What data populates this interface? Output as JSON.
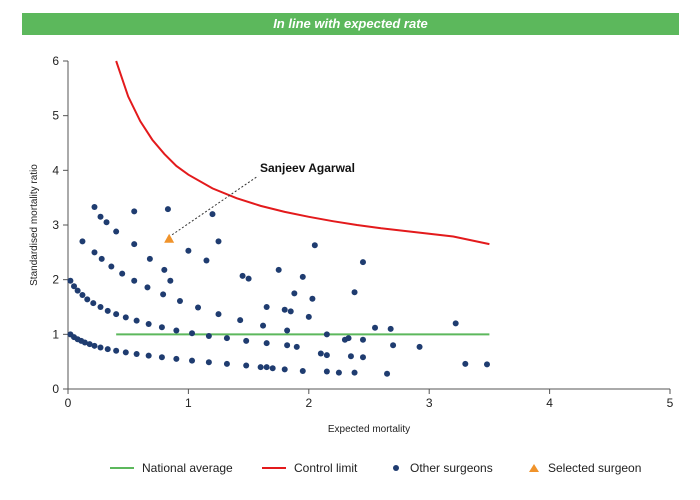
{
  "banner": {
    "text": "In line with expected rate",
    "color": "#5cb85c"
  },
  "chart_data": {
    "type": "scatter",
    "title": "In line with expected rate",
    "xlabel": "Expected mortality",
    "ylabel": "Standardised mortality ratio",
    "xlim": [
      0,
      5
    ],
    "ylim": [
      0,
      6
    ],
    "xticks": [
      "0",
      "1",
      "2",
      "3",
      "4",
      "5"
    ],
    "yticks": [
      "0",
      "1",
      "2",
      "3",
      "4",
      "5",
      "6"
    ],
    "grid": false,
    "legend_position": "bottom",
    "colors": {
      "national": "#5cb85c",
      "control": "#e31a1c",
      "other": "#1f3c70",
      "selected": "#f0932b"
    },
    "national_average": {
      "name": "National average",
      "x": [
        0.4,
        3.5
      ],
      "y": [
        1,
        1
      ]
    },
    "control_limit": {
      "name": "Control limit",
      "x": [
        0.4,
        0.5,
        0.6,
        0.7,
        0.8,
        0.9,
        1.0,
        1.2,
        1.4,
        1.6,
        1.8,
        2.0,
        2.2,
        2.4,
        2.6,
        2.8,
        3.0,
        3.2,
        3.5
      ],
      "y": [
        6.0,
        5.35,
        4.9,
        4.56,
        4.3,
        4.08,
        3.92,
        3.67,
        3.49,
        3.35,
        3.24,
        3.15,
        3.07,
        3.0,
        2.94,
        2.89,
        2.84,
        2.79,
        2.65
      ]
    },
    "other_surgeons": {
      "name": "Other surgeons",
      "points": [
        [
          0.02,
          1.0
        ],
        [
          0.05,
          0.95
        ],
        [
          0.08,
          0.91
        ],
        [
          0.11,
          0.88
        ],
        [
          0.14,
          0.85
        ],
        [
          0.18,
          0.82
        ],
        [
          0.22,
          0.79
        ],
        [
          0.27,
          0.76
        ],
        [
          0.33,
          0.73
        ],
        [
          0.4,
          0.7
        ],
        [
          0.48,
          0.67
        ],
        [
          0.57,
          0.64
        ],
        [
          0.67,
          0.61
        ],
        [
          0.78,
          0.58
        ],
        [
          0.9,
          0.55
        ],
        [
          1.03,
          0.52
        ],
        [
          1.17,
          0.49
        ],
        [
          1.32,
          0.46
        ],
        [
          1.48,
          0.43
        ],
        [
          1.65,
          0.4
        ],
        [
          1.7,
          0.38
        ],
        [
          0.02,
          1.98
        ],
        [
          0.05,
          1.88
        ],
        [
          0.08,
          1.8
        ],
        [
          0.12,
          1.72
        ],
        [
          0.16,
          1.64
        ],
        [
          0.21,
          1.57
        ],
        [
          0.27,
          1.5
        ],
        [
          0.33,
          1.43
        ],
        [
          0.4,
          1.37
        ],
        [
          0.48,
          1.31
        ],
        [
          0.57,
          1.25
        ],
        [
          0.67,
          1.19
        ],
        [
          0.78,
          1.13
        ],
        [
          0.9,
          1.07
        ],
        [
          1.03,
          1.02
        ],
        [
          1.17,
          0.97
        ],
        [
          1.32,
          0.93
        ],
        [
          1.48,
          0.88
        ],
        [
          1.65,
          0.84
        ],
        [
          1.82,
          0.8
        ],
        [
          1.9,
          0.77
        ],
        [
          0.22,
          2.5
        ],
        [
          0.28,
          2.38
        ],
        [
          0.36,
          2.24
        ],
        [
          0.45,
          2.11
        ],
        [
          0.55,
          1.98
        ],
        [
          0.66,
          1.86
        ],
        [
          0.79,
          1.73
        ],
        [
          0.93,
          1.61
        ],
        [
          1.08,
          1.49
        ],
        [
          1.25,
          1.37
        ],
        [
          1.43,
          1.26
        ],
        [
          1.62,
          1.16
        ],
        [
          1.82,
          1.07
        ],
        [
          0.55,
          2.65
        ],
        [
          0.68,
          2.38
        ],
        [
          0.8,
          2.18
        ],
        [
          1.15,
          2.35
        ],
        [
          0.85,
          1.98
        ],
        [
          0.22,
          3.33
        ],
        [
          0.27,
          3.15
        ],
        [
          0.32,
          3.05
        ],
        [
          0.4,
          2.88
        ],
        [
          0.55,
          3.25
        ],
        [
          0.83,
          3.29
        ],
        [
          1.2,
          3.2
        ],
        [
          1.0,
          2.53
        ],
        [
          1.25,
          2.7
        ],
        [
          0.12,
          2.7
        ],
        [
          1.45,
          2.07
        ],
        [
          1.5,
          2.02
        ],
        [
          1.75,
          2.18
        ],
        [
          2.05,
          2.63
        ],
        [
          2.45,
          2.32
        ],
        [
          1.95,
          2.05
        ],
        [
          1.88,
          1.75
        ],
        [
          2.03,
          1.65
        ],
        [
          2.38,
          1.77
        ],
        [
          1.8,
          1.45
        ],
        [
          1.65,
          1.5
        ],
        [
          2.0,
          1.32
        ],
        [
          1.85,
          1.42
        ],
        [
          2.15,
          1.0
        ],
        [
          2.3,
          0.9
        ],
        [
          2.55,
          1.12
        ],
        [
          2.68,
          1.1
        ],
        [
          2.7,
          0.8
        ],
        [
          2.92,
          0.77
        ],
        [
          3.22,
          1.2
        ],
        [
          3.3,
          0.46
        ],
        [
          3.48,
          0.45
        ],
        [
          2.1,
          0.65
        ],
        [
          2.15,
          0.62
        ],
        [
          2.35,
          0.6
        ],
        [
          2.45,
          0.58
        ],
        [
          2.25,
          0.3
        ],
        [
          2.38,
          0.3
        ],
        [
          2.65,
          0.28
        ],
        [
          1.95,
          0.33
        ],
        [
          2.15,
          0.32
        ],
        [
          1.8,
          0.36
        ],
        [
          1.6,
          0.4
        ],
        [
          2.33,
          0.93
        ],
        [
          2.45,
          0.9
        ]
      ]
    },
    "selected_surgeon": {
      "name": "Selected surgeon",
      "label": "Sanjeev Agarwal",
      "x": 0.84,
      "y": 2.73
    }
  },
  "legend": {
    "national": "National average",
    "control": "Control limit",
    "other": "Other surgeons",
    "selected": "Selected surgeon"
  }
}
